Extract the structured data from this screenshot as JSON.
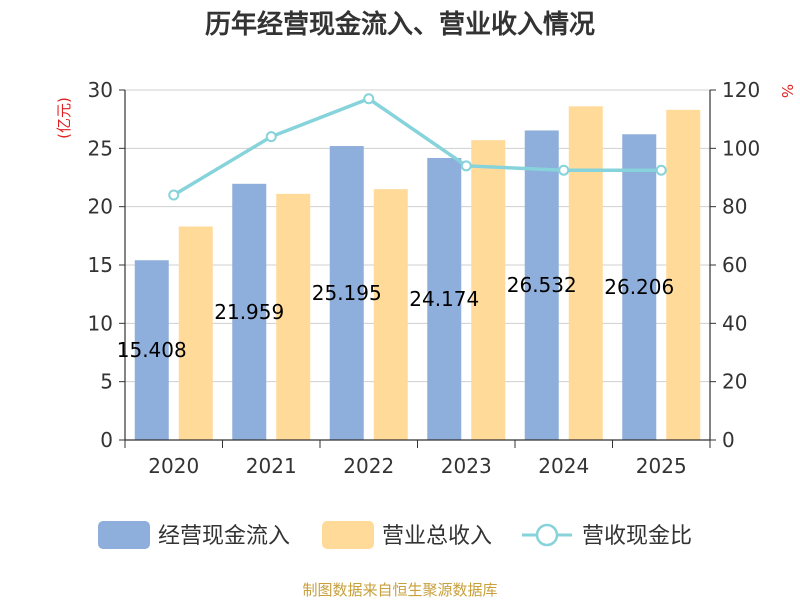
{
  "chart_data": {
    "type": "bar",
    "title": "历年经营现金流入、营业收入情况",
    "categories": [
      "2020",
      "2021",
      "2022",
      "2023",
      "2024",
      "2025"
    ],
    "y_left": {
      "unit": "(亿元)",
      "ylim": [
        0,
        30
      ],
      "ticks": [
        0,
        5,
        10,
        15,
        20,
        25,
        30
      ]
    },
    "y_right": {
      "unit": "%",
      "ylim": [
        0,
        120
      ],
      "ticks": [
        0,
        20,
        40,
        60,
        80,
        100,
        120
      ]
    },
    "series": [
      {
        "name": "经营现金流入",
        "type": "bar",
        "axis": "left",
        "color": "#8eaedb",
        "values": [
          15.408,
          21.959,
          25.195,
          24.174,
          26.532,
          26.206
        ],
        "labels": [
          "15.408",
          "21.959",
          "25.195",
          "24.174",
          "26.532",
          "26.206"
        ]
      },
      {
        "name": "营业总收入",
        "type": "bar",
        "axis": "left",
        "color": "#ffda99",
        "values": [
          18.3,
          21.1,
          21.5,
          25.7,
          28.6,
          28.3
        ]
      },
      {
        "name": "营收现金比",
        "type": "line",
        "axis": "right",
        "color": "#86d3db",
        "values": [
          84.0,
          104.0,
          117.0,
          94.0,
          92.5,
          92.5
        ]
      }
    ],
    "grid": true,
    "legend_position": "bottom"
  },
  "source": "制图数据来自恒生聚源数据库"
}
